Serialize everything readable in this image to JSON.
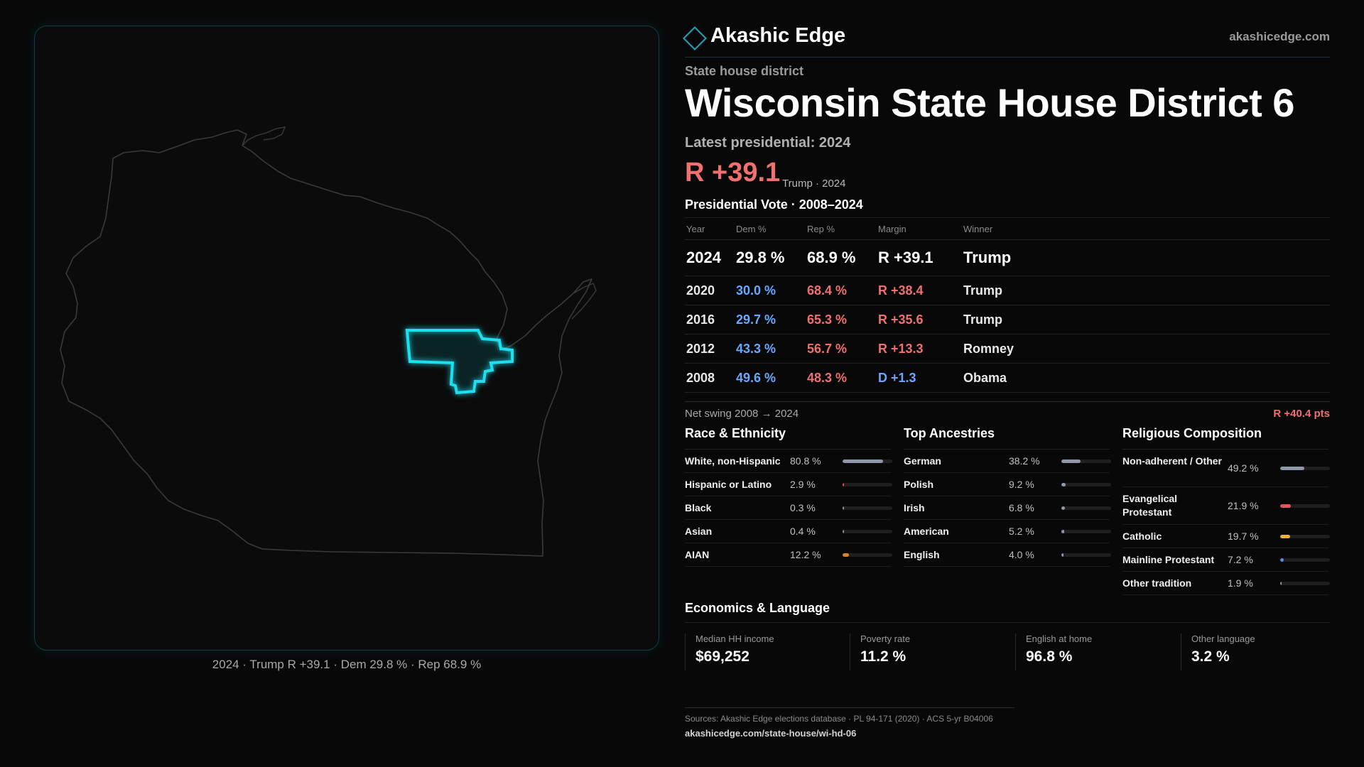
{
  "brand": {
    "name": "Akashic Edge",
    "url": "akashicedge.com"
  },
  "kicker": "State house district",
  "title": "Wisconsin State House District 6",
  "latest_label": "Latest presidential: 2024",
  "latest": {
    "margin": "R +39.1",
    "sub": "Trump · 2024"
  },
  "vote_table": {
    "title": "Presidential Vote · 2008–2024",
    "headers": {
      "year": "Year",
      "dem": "Dem %",
      "rep": "Rep %",
      "margin": "Margin",
      "winner": "Winner"
    },
    "rows": [
      {
        "year": "2024",
        "dem": "29.8 %",
        "rep": "68.9 %",
        "margin": "R +39.1",
        "winner": "Trump"
      },
      {
        "year": "2020",
        "dem": "30.0 %",
        "rep": "68.4 %",
        "margin": "R +38.4",
        "winner": "Trump"
      },
      {
        "year": "2016",
        "dem": "29.7 %",
        "rep": "65.3 %",
        "margin": "R +35.6",
        "winner": "Trump"
      },
      {
        "year": "2012",
        "dem": "43.3 %",
        "rep": "56.7 %",
        "margin": "R +13.3",
        "winner": "Romney"
      },
      {
        "year": "2008",
        "dem": "49.6 %",
        "rep": "48.3 %",
        "margin": "D +1.3",
        "winner": "Obama"
      }
    ]
  },
  "swing": {
    "label": "Net swing 2008 → 2024",
    "value": "R +40.4 pts"
  },
  "race": {
    "title": "Race & Ethnicity",
    "items": [
      {
        "label": "White, non-Hispanic",
        "value": "80.8 %",
        "share": 0.808,
        "color": "#8e98a6"
      },
      {
        "label": "Hispanic or Latino",
        "value": "2.9 %",
        "share": 0.029,
        "color": "#e8563c"
      },
      {
        "label": "Black",
        "value": "0.3 %",
        "share": 0.003,
        "color": "#8e98a6"
      },
      {
        "label": "Asian",
        "value": "0.4 %",
        "share": 0.004,
        "color": "#8e98a6"
      },
      {
        "label": "AIAN",
        "value": "12.2 %",
        "share": 0.122,
        "color": "#d9822b"
      }
    ]
  },
  "ancestry": {
    "title": "Top Ancestries",
    "items": [
      {
        "label": "German",
        "value": "38.2 %",
        "share": 0.382,
        "color": "#8e98a6"
      },
      {
        "label": "Polish",
        "value": "9.2 %",
        "share": 0.092,
        "color": "#8e98a6"
      },
      {
        "label": "Irish",
        "value": "6.8 %",
        "share": 0.068,
        "color": "#8e98a6"
      },
      {
        "label": "American",
        "value": "5.2 %",
        "share": 0.052,
        "color": "#8e98a6"
      },
      {
        "label": "English",
        "value": "4.0 %",
        "share": 0.04,
        "color": "#8e98a6"
      }
    ]
  },
  "religion": {
    "title": "Religious Composition",
    "items": [
      {
        "label": "Non-adherent / Other",
        "value": "49.2 %",
        "share": 0.492,
        "color": "#8e98a6"
      },
      {
        "label": "Evangelical Protestant",
        "value": "21.9 %",
        "share": 0.219,
        "color": "#e0555f"
      },
      {
        "label": "Catholic",
        "value": "19.7 %",
        "share": 0.197,
        "color": "#e6b13c"
      },
      {
        "label": "Mainline Protestant",
        "value": "7.2 %",
        "share": 0.072,
        "color": "#5b8de6"
      },
      {
        "label": "Other tradition",
        "value": "1.9 %",
        "share": 0.019,
        "color": "#8e98a6"
      }
    ]
  },
  "economics": {
    "title": "Economics & Language",
    "items": [
      {
        "label": "Median HH income",
        "value": "$69,252"
      },
      {
        "label": "Poverty rate",
        "value": "11.2 %"
      },
      {
        "label": "English at home",
        "value": "96.8 %"
      },
      {
        "label": "Other language",
        "value": "3.2 %"
      }
    ]
  },
  "map_caption": "2024 · Trump R +39.1 · Dem 29.8 % · Rep 68.9 %",
  "sources": {
    "line": "Sources: Akashic Edge elections database · PL 94-171 (2020) · ACS 5-yr B04006",
    "url": "akashicedge.com/state-house/wi-hd-06"
  },
  "colors": {
    "accent": "#1ee0f0",
    "dem": "#6aa8ff",
    "rep": "#f07070",
    "state_outline": "#3a3a3a"
  }
}
